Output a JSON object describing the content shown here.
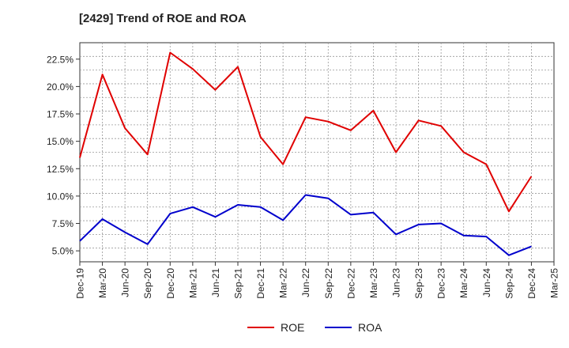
{
  "chart_data": {
    "type": "line",
    "title": "[2429]  Trend of ROE and ROA",
    "x": [
      "Dec-19",
      "Mar-20",
      "Jun-20",
      "Sep-20",
      "Dec-20",
      "Mar-21",
      "Jun-21",
      "Sep-21",
      "Dec-21",
      "Mar-22",
      "Jun-22",
      "Sep-22",
      "Dec-22",
      "Mar-23",
      "Jun-23",
      "Sep-23",
      "Dec-23",
      "Mar-24",
      "Jun-24",
      "Sep-24",
      "Dec-24",
      "Mar-25"
    ],
    "yticks": [
      "5.0%",
      "7.5%",
      "10.0%",
      "12.5%",
      "15.0%",
      "17.5%",
      "20.0%",
      "22.5%"
    ],
    "ytick_values": [
      5.0,
      7.5,
      10.0,
      12.5,
      15.0,
      17.5,
      20.0,
      22.5
    ],
    "ylim": [
      4.0,
      24.0
    ],
    "series": [
      {
        "name": "ROE",
        "color": "#e00000",
        "values": [
          13.5,
          21.1,
          16.2,
          13.8,
          23.1,
          21.6,
          19.7,
          21.8,
          15.4,
          12.9,
          17.2,
          16.8,
          16.0,
          17.8,
          14.0,
          16.9,
          16.4,
          14.0,
          12.9,
          8.6,
          11.8,
          null
        ]
      },
      {
        "name": "ROA",
        "color": "#0000cc",
        "values": [
          5.9,
          7.9,
          6.7,
          5.6,
          8.4,
          9.0,
          8.1,
          9.2,
          9.0,
          7.8,
          10.1,
          9.8,
          8.3,
          8.5,
          6.5,
          7.4,
          7.5,
          6.4,
          6.3,
          4.6,
          5.4,
          null
        ]
      }
    ],
    "grid": true,
    "legend": "bottom-center"
  }
}
